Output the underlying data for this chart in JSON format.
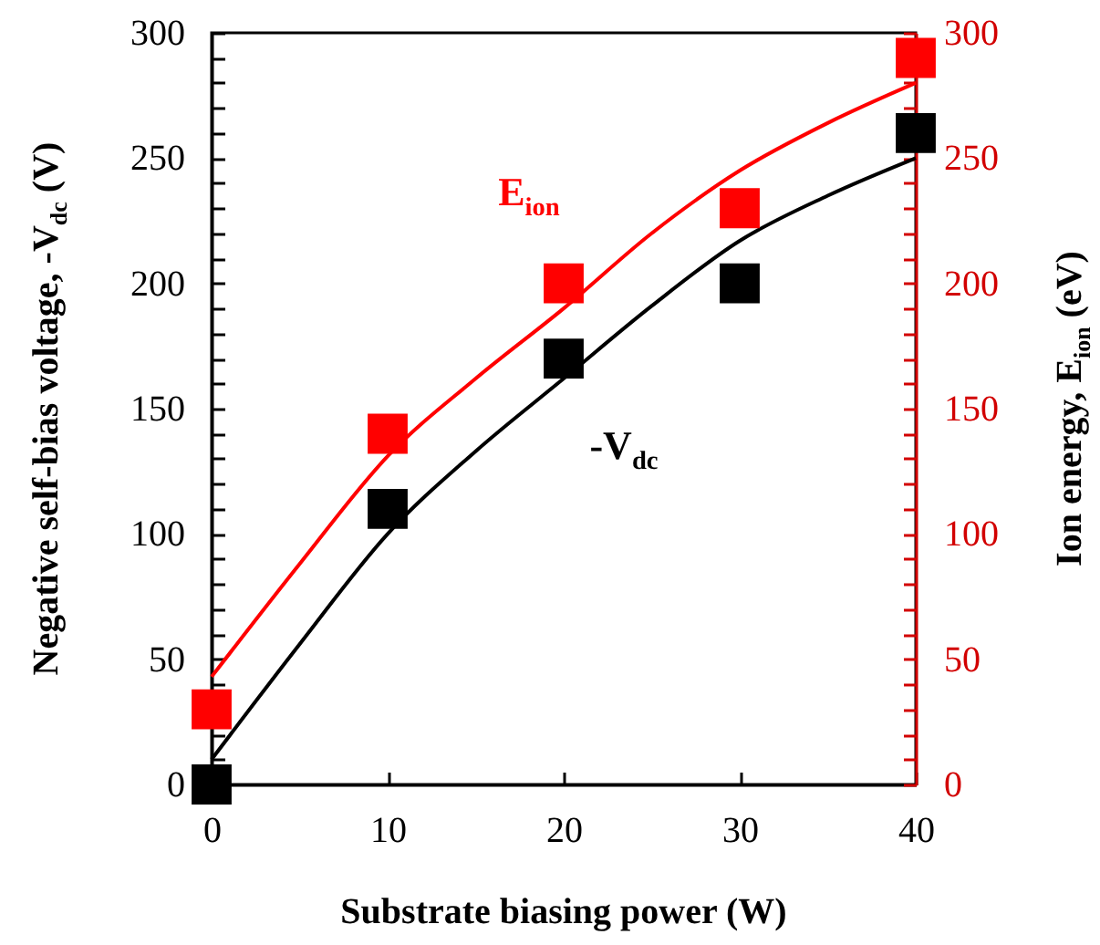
{
  "chart_data": {
    "type": "scatter",
    "xlabel": "Substrate biasing power (W)",
    "ylabel": "Negative self-bias voltage, -V$_{dc}$ (V)",
    "y2label": "Ion energy, E$_{ion}$ (eV)",
    "xlim": [
      0,
      40
    ],
    "xticks": [
      0,
      10,
      20,
      30,
      40
    ],
    "ylim": [
      0,
      300
    ],
    "yticks": [
      0,
      {
        "value": 10,
        "label": null
      },
      {
        "value": 20,
        "label": null
      },
      {
        "value": 30,
        "label": null
      },
      {
        "value": 40,
        "label": null
      },
      50,
      {
        "value": 60,
        "label": null
      },
      {
        "value": 70,
        "label": null
      },
      {
        "value": 80,
        "label": null
      },
      {
        "value": 90,
        "label": null
      },
      100,
      {
        "value": 110,
        "label": null
      },
      {
        "value": 120,
        "label": null
      },
      {
        "value": 130,
        "label": null
      },
      {
        "value": 140,
        "label": null
      },
      150,
      {
        "value": 160,
        "label": null
      },
      {
        "value": 170,
        "label": null
      },
      {
        "value": 180,
        "label": null
      },
      {
        "value": 190,
        "label": null
      },
      200,
      {
        "value": 210,
        "label": null
      },
      {
        "value": 220,
        "label": null
      },
      {
        "value": 230,
        "label": null
      },
      {
        "value": 240,
        "label": null
      },
      250,
      {
        "value": 260,
        "label": null
      },
      {
        "value": 270,
        "label": null
      },
      {
        "value": 280,
        "label": null
      },
      {
        "value": 290,
        "label": null
      },
      300
    ],
    "y2lim": [
      0,
      300
    ],
    "y2ticks": [
      0,
      {
        "value": 10,
        "label": null
      },
      {
        "value": 20,
        "label": null
      },
      {
        "value": 30,
        "label": null
      },
      {
        "value": 40,
        "label": null
      },
      50,
      {
        "value": 60,
        "label": null
      },
      {
        "value": 70,
        "label": null
      },
      {
        "value": 80,
        "label": null
      },
      {
        "value": 90,
        "label": null
      },
      100,
      {
        "value": 110,
        "label": null
      },
      {
        "value": 120,
        "label": null
      },
      {
        "value": 130,
        "label": null
      },
      {
        "value": 140,
        "label": null
      },
      150,
      {
        "value": 160,
        "label": null
      },
      {
        "value": 170,
        "label": null
      },
      {
        "value": 180,
        "label": null
      },
      {
        "value": 190,
        "label": null
      },
      200,
      {
        "value": 210,
        "label": null
      },
      {
        "value": 220,
        "label": null
      },
      {
        "value": 230,
        "label": null
      },
      {
        "value": 240,
        "label": null
      },
      250,
      {
        "value": 260,
        "label": null
      },
      {
        "value": 270,
        "label": null
      },
      {
        "value": 280,
        "label": null
      },
      {
        "value": 290,
        "label": null
      },
      300
    ],
    "x": [
      0,
      10,
      20,
      30,
      40
    ],
    "marker": "square",
    "grid": false,
    "legend": false,
    "series": [
      {
        "color": "#000000",
        "values": [
          0,
          110,
          170,
          200,
          260
        ]
      },
      {
        "color": "#ff0000",
        "axis": "y2",
        "values": [
          30,
          140,
          200,
          230,
          290
        ]
      },
      {
        "type": "line",
        "name": "-V$_{dc}$",
        "marker": "none",
        "color": "#000000",
        "x": [
          0,
          5,
          10,
          15,
          20,
          25,
          30,
          35,
          40
        ],
        "values": [
          10,
          56,
          100,
          133,
          162,
          191,
          217,
          235,
          250
        ]
      },
      {
        "type": "line",
        "name": "E$_{ion}$",
        "marker": "none",
        "color": "#ff0000",
        "axis": "y2",
        "x": [
          0,
          5,
          10,
          15,
          20,
          25,
          30,
          35,
          40
        ],
        "values": [
          43,
          88,
          131,
          162,
          190,
          220,
          245,
          264,
          280
        ]
      }
    ]
  }
}
